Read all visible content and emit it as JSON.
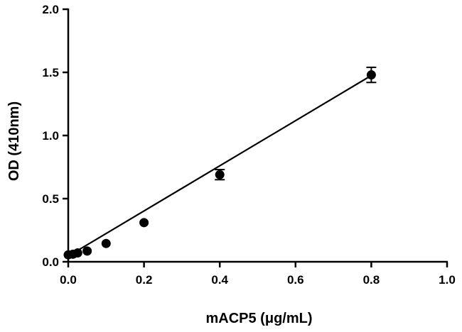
{
  "chart_data": {
    "type": "scatter",
    "xlabel": "mACP5 (μg/mL)",
    "ylabel": "OD (410nm)",
    "xlim": [
      0,
      1.0
    ],
    "ylim": [
      0,
      2.0
    ],
    "x_ticks": [
      "0.0",
      "0.2",
      "0.4",
      "0.6",
      "0.8",
      "1.0"
    ],
    "x_tick_values": [
      0,
      0.2,
      0.4,
      0.6,
      0.8,
      1.0
    ],
    "y_ticks": [
      "0.0",
      "0.5",
      "1.0",
      "1.5",
      "2.0"
    ],
    "y_tick_values": [
      0,
      0.5,
      1.0,
      1.5,
      2.0
    ],
    "grid": false,
    "legend": "none",
    "points": [
      {
        "x": 0.0,
        "y": 0.055,
        "err": 0.0
      },
      {
        "x": 0.0125,
        "y": 0.06,
        "err": 0.0
      },
      {
        "x": 0.025,
        "y": 0.07,
        "err": 0.0
      },
      {
        "x": 0.05,
        "y": 0.085,
        "err": 0.0
      },
      {
        "x": 0.1,
        "y": 0.145,
        "err": 0.0
      },
      {
        "x": 0.2,
        "y": 0.31,
        "err": 0.0
      },
      {
        "x": 0.4,
        "y": 0.69,
        "err": 0.04
      },
      {
        "x": 0.8,
        "y": 1.48,
        "err": 0.06
      }
    ],
    "fit_line": {
      "x": [
        0,
        0.8
      ],
      "y": [
        0.045,
        1.475
      ]
    }
  }
}
